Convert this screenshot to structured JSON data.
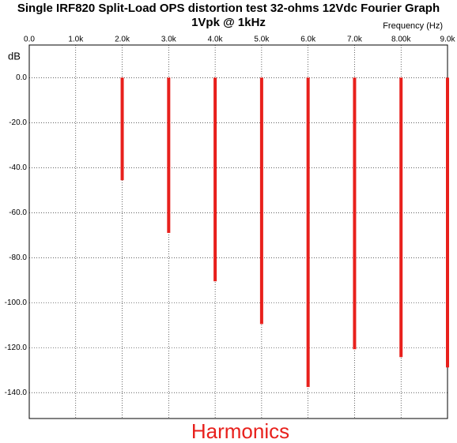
{
  "chart_data": {
    "type": "bar",
    "title": "Single IRF820 Split-Load OPS distortion test 32-ohms 12Vdc Fourier Graph",
    "subtitle": "1Vpk @ 1kHz",
    "x_label": "Frequency  (Hz)",
    "y_label": "dB",
    "caption": "Harmonics",
    "x": [
      2000,
      3000,
      4000,
      5000,
      6000,
      7000,
      8000,
      9000
    ],
    "values": [
      -45.6,
      -69,
      -90.5,
      -109.5,
      -137.5,
      -120.7,
      -124.2,
      -128.8
    ],
    "color": "#e8201c",
    "xlim": [
      0,
      9000
    ],
    "xticks": [
      {
        "value": 0,
        "label": "0.0"
      },
      {
        "value": 1000,
        "label": "1.0k"
      },
      {
        "value": 2000,
        "label": "2.0k"
      },
      {
        "value": 3000,
        "label": "3.0k"
      },
      {
        "value": 4000,
        "label": "4.0k"
      },
      {
        "value": 5000,
        "label": "5.0k"
      },
      {
        "value": 6000,
        "label": "6.0k"
      },
      {
        "value": 7000,
        "label": "7.0k"
      },
      {
        "value": 8000,
        "label": "8.00k"
      },
      {
        "value": 9000,
        "label": "9.0k"
      }
    ],
    "ylim": [
      -151.5,
      14.5
    ],
    "yticks": [
      {
        "value": 0,
        "label": "0.0"
      },
      {
        "value": -20,
        "label": "-20.0"
      },
      {
        "value": -40,
        "label": "-40.0"
      },
      {
        "value": -60,
        "label": "-60.0"
      },
      {
        "value": -80,
        "label": "-80.0"
      },
      {
        "value": -100,
        "label": "-100.0"
      },
      {
        "value": -120,
        "label": "-120.0"
      },
      {
        "value": -140,
        "label": "-140.0"
      }
    ],
    "grid": true
  }
}
